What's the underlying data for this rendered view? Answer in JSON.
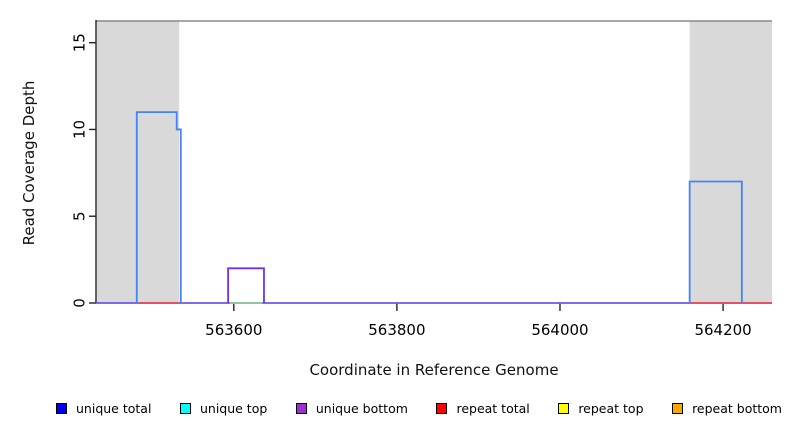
{
  "figure": {
    "xlabel": "Coordinate in Reference Genome",
    "ylabel": "Read Coverage Depth"
  },
  "chart_data": {
    "type": "area",
    "title": "",
    "xlabel": "Coordinate in Reference Genome",
    "ylabel": "Read Coverage Depth",
    "xlim": [
      563431,
      564260
    ],
    "ylim": [
      0,
      16.25
    ],
    "xticks": [
      563600,
      563800,
      564000,
      564200
    ],
    "yticks": [
      0,
      5,
      10,
      15
    ],
    "grid": false,
    "legend_position": "bottom",
    "repeat_regions": [
      {
        "start": 563432,
        "end": 563533
      },
      {
        "start": 564159,
        "end": 564260
      }
    ],
    "coverage_outlines": [
      {
        "name": "unique-total-left",
        "color": "#4484f3",
        "steps": [
          {
            "x0": 563481,
            "x1": 563530,
            "depth": 11
          },
          {
            "x0": 563530,
            "x1": 563535,
            "depth": 10
          }
        ]
      },
      {
        "name": "unique-bottom",
        "color": "#7031e8",
        "steps": [
          {
            "x0": 563593,
            "x1": 563637,
            "depth": 2
          }
        ]
      },
      {
        "name": "unique-total-right",
        "color": "#4484f3",
        "steps": [
          {
            "x0": 564159,
            "x1": 564223,
            "depth": 7
          }
        ]
      }
    ],
    "baseline_color": "#6e58e0",
    "baseline_segments": [
      {
        "name": "repeat-total-left",
        "color": "#ef4b52",
        "start": 563483,
        "end": 563533,
        "depth": 0
      },
      {
        "name": "unique-top-mid",
        "color": "#90d290",
        "start": 563595,
        "end": 563635,
        "depth": 0
      },
      {
        "name": "repeat-total-right",
        "color": "#ef4b52",
        "start": 564159,
        "end": 564260,
        "depth": 0
      }
    ],
    "colors": {
      "shade": "#d9d9d9",
      "top_border": "#8a8a8a",
      "axis": "#222222",
      "tick_label": "#000000"
    }
  },
  "legend": {
    "items": [
      {
        "label": "unique total",
        "color": "#0000ee"
      },
      {
        "label": "unique top",
        "color": "#00ffff"
      },
      {
        "label": "unique bottom",
        "color": "#9a30d0"
      },
      {
        "label": "repeat total",
        "color": "#ff0000"
      },
      {
        "label": "repeat top",
        "color": "#ffff00"
      },
      {
        "label": "repeat bottom",
        "color": "#ffa500"
      }
    ]
  }
}
